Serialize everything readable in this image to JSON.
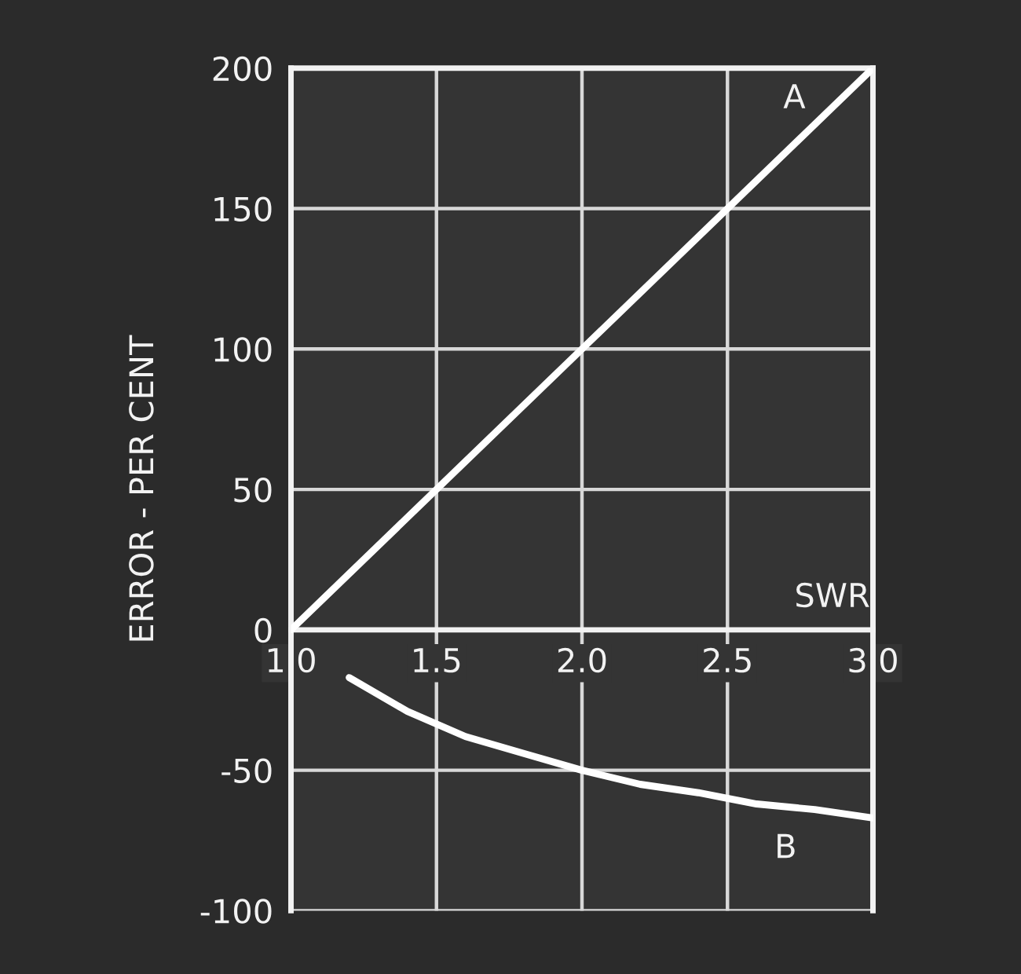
{
  "chart_data": {
    "type": "line",
    "xlabel": "SWR",
    "ylabel": "ERROR - PER CENT",
    "series": [
      {
        "name": "A",
        "color": "#ffffff",
        "x": [
          1.0,
          3.0
        ],
        "values": [
          0,
          200
        ]
      },
      {
        "name": "B",
        "color": "#ffffff",
        "x": [
          1.2,
          1.4,
          1.6,
          1.8,
          2.0,
          2.2,
          2.4,
          2.6,
          2.8,
          3.0
        ],
        "values": [
          -17,
          -29,
          -38,
          -44,
          -50,
          -55,
          -58,
          -62,
          -64,
          -67
        ]
      }
    ],
    "xlim": [
      1.0,
      3.0
    ],
    "xticks": [
      {
        "value": 1.0,
        "label": "1.0"
      },
      1.5,
      {
        "value": 2.0,
        "label": "2.0"
      },
      2.5,
      {
        "value": 3.0,
        "label": "3.0"
      }
    ],
    "ylim": [
      -100,
      200
    ],
    "yticks": [
      -100,
      -50,
      0,
      50,
      100,
      150,
      200
    ],
    "grid": true,
    "marker": "none",
    "line_style": "solid",
    "legend": false
  }
}
